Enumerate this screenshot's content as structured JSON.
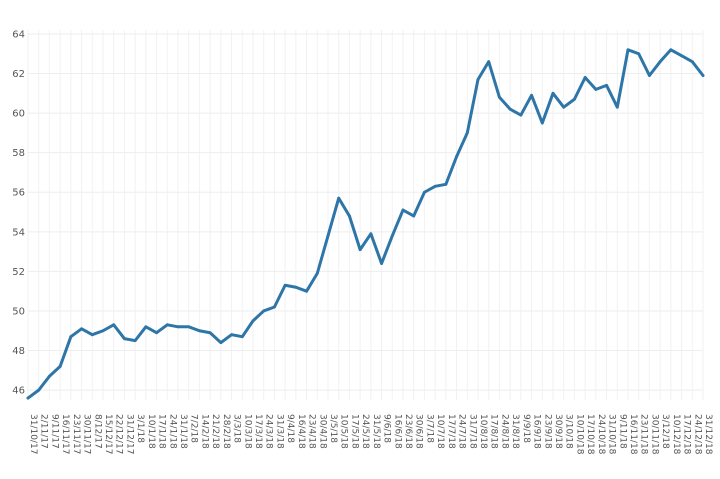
{
  "chart_data": {
    "type": "line",
    "title": "",
    "xlabel": "",
    "ylabel": "",
    "ylim": [
      45.5,
      64.2
    ],
    "yticks": [
      46,
      48,
      50,
      52,
      54,
      56,
      58,
      60,
      62,
      64
    ],
    "grid": true,
    "legend": "none",
    "line_color": "#2e75a8",
    "x": [
      "31/10/17",
      "2/11/17",
      "9/11/17",
      "16/11/17",
      "23/11/17",
      "30/11/17",
      "8/12/17",
      "15/12/17",
      "22/12/17",
      "31/12/17",
      "3/1/18",
      "10/1/18",
      "17/1/18",
      "24/1/18",
      "31/1/18",
      "7/2/18",
      "14/2/18",
      "21/2/18",
      "28/2/18",
      "3/3/18",
      "10/3/18",
      "17/3/18",
      "24/3/18",
      "31/3/18",
      "9/4/18",
      "16/4/18",
      "23/4/18",
      "30/4/18",
      "3/5/18",
      "10/5/18",
      "17/5/18",
      "24/5/18",
      "31/5/18",
      "9/6/18",
      "16/6/18",
      "23/6/18",
      "30/6/18",
      "3/7/18",
      "10/7/18",
      "17/7/18",
      "24/7/18",
      "31/7/18",
      "10/8/18",
      "17/8/18",
      "24/8/18",
      "31/8/18",
      "9/9/18",
      "16/9/18",
      "23/9/18",
      "30/9/18",
      "3/10/18",
      "10/10/18",
      "17/10/18",
      "24/10/18",
      "31/10/18",
      "9/11/18",
      "16/11/18",
      "23/11/18",
      "30/11/18",
      "3/12/18",
      "10/12/18",
      "17/12/18",
      "24/12/18",
      "31/12/18"
    ],
    "series": [
      {
        "values": [
          45.6,
          46.0,
          46.7,
          47.2,
          48.7,
          49.1,
          48.8,
          49.0,
          49.3,
          48.6,
          48.5,
          49.2,
          48.9,
          49.3,
          49.2,
          49.2,
          49.0,
          48.9,
          48.4,
          48.8,
          48.7,
          49.5,
          50.0,
          50.2,
          51.3,
          51.2,
          51.0,
          51.9,
          53.8,
          55.7,
          54.8,
          53.1,
          53.9,
          52.4,
          53.8,
          55.1,
          54.8,
          56.0,
          56.3,
          56.4,
          57.8,
          59.0,
          61.7,
          62.6,
          60.8,
          60.2,
          59.9,
          60.9,
          59.5,
          61.0,
          60.3,
          60.7,
          61.8,
          61.2,
          61.4,
          60.3,
          63.2,
          63.0,
          61.9,
          62.6,
          63.2,
          62.9,
          62.6,
          61.9
        ]
      }
    ]
  }
}
